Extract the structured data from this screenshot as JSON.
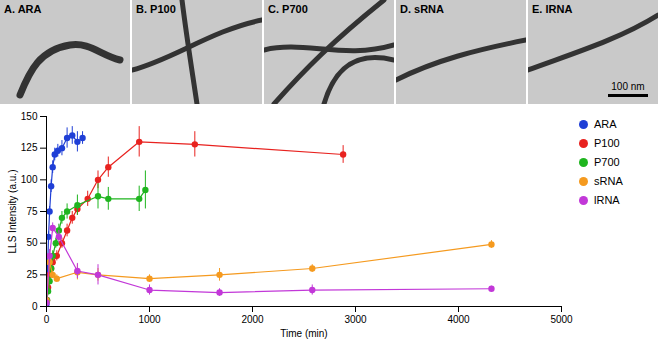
{
  "panels": [
    {
      "label": "A. ARA"
    },
    {
      "label": "B. P100"
    },
    {
      "label": "C. P700"
    },
    {
      "label": "D. sRNA"
    },
    {
      "label": "E. lRNA",
      "scale_bar": "100 nm"
    }
  ],
  "chart_data": {
    "type": "line",
    "marker": "circle",
    "x_label": "Time (min)",
    "y_label": "LLS Intensity (a.u.)",
    "xlim": [
      0,
      5000
    ],
    "xticks": [
      0,
      1000,
      2000,
      3000,
      4000,
      5000
    ],
    "ylim": [
      0,
      150
    ],
    "yticks": [
      0,
      25,
      50,
      75,
      100,
      125,
      150
    ],
    "grid": false,
    "legend": "right",
    "series": [
      {
        "name": "ARA",
        "color": "#1f3fd6",
        "x": [
          0,
          10,
          20,
          30,
          45,
          60,
          80,
          110,
          150,
          200,
          250,
          300,
          350
        ],
        "values": [
          2,
          30,
          55,
          75,
          95,
          110,
          120,
          123,
          125,
          133,
          135,
          130,
          133
        ],
        "errors": [
          1,
          3,
          4,
          4,
          5,
          5,
          5,
          5,
          6,
          8,
          7,
          8,
          5
        ]
      },
      {
        "name": "P100",
        "color": "#e8221f",
        "x": [
          5,
          15,
          30,
          45,
          60,
          100,
          150,
          200,
          250,
          300,
          400,
          500,
          600,
          900,
          1440,
          2880
        ],
        "values": [
          5,
          15,
          25,
          30,
          35,
          40,
          50,
          60,
          70,
          77,
          85,
          100,
          110,
          130,
          128,
          120
        ],
        "errors": [
          1,
          2,
          3,
          3,
          3,
          4,
          4,
          5,
          5,
          5,
          6,
          7,
          8,
          12,
          10,
          7
        ]
      },
      {
        "name": "P700",
        "color": "#1fb51f",
        "x": [
          5,
          15,
          30,
          45,
          60,
          90,
          120,
          150,
          200,
          300,
          500,
          600,
          900,
          960
        ],
        "values": [
          5,
          12,
          20,
          30,
          40,
          50,
          60,
          70,
          75,
          80,
          87,
          85,
          85,
          92
        ],
        "errors": [
          1,
          2,
          3,
          3,
          4,
          4,
          5,
          5,
          6,
          8,
          10,
          9,
          10,
          15
        ]
      },
      {
        "name": "sRNA",
        "color": "#f59a1f",
        "x": [
          0,
          30,
          60,
          100,
          300,
          500,
          1000,
          1680,
          2580,
          4320
        ],
        "values": [
          5,
          35,
          25,
          22,
          27,
          25,
          22,
          25,
          30,
          49
        ],
        "errors": [
          1,
          4,
          3,
          3,
          6,
          5,
          3,
          5,
          3,
          3
        ]
      },
      {
        "name": "lRNA",
        "color": "#c238d8",
        "x": [
          0,
          30,
          60,
          120,
          300,
          500,
          1000,
          1680,
          2580,
          4320
        ],
        "values": [
          3,
          40,
          62,
          55,
          28,
          25,
          13,
          11,
          13,
          14
        ],
        "errors": [
          1,
          5,
          4,
          5,
          6,
          8,
          4,
          3,
          4,
          2
        ]
      }
    ]
  }
}
